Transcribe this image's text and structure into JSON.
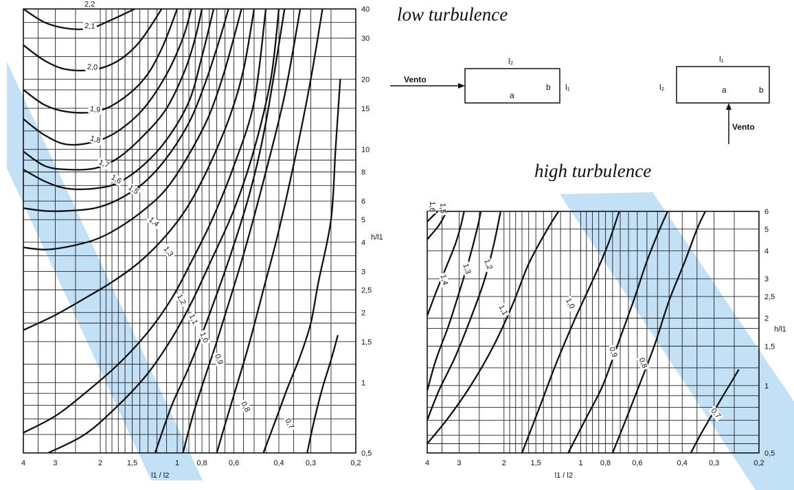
{
  "chart_data": [
    {
      "type": "line",
      "title": "low turbulence",
      "xlabel": "l1 / l2",
      "ylabel": "h/l1",
      "x_scale": "log-reversed",
      "y_scale": "log",
      "xlim": [
        4,
        0.2
      ],
      "ylim": [
        0.5,
        40
      ],
      "x_ticks": [
        "4",
        "3",
        "2",
        "1,5",
        "1",
        "0,8",
        "0,6",
        "0,4",
        "0,3",
        "0,2"
      ],
      "x_tick_values": [
        4,
        3,
        2,
        1.5,
        1,
        0.8,
        0.6,
        0.4,
        0.3,
        0.2
      ],
      "y_ticks": [
        "0,5",
        "1",
        "1,5",
        "2",
        "2,5",
        "3",
        "4",
        "5",
        "6",
        "8",
        "10",
        "15",
        "20",
        "30",
        "40"
      ],
      "y_tick_values": [
        0.5,
        1,
        1.5,
        2,
        2.5,
        3,
        4,
        5,
        6,
        8,
        10,
        15,
        20,
        30,
        40
      ],
      "grid": true,
      "series": [
        {
          "name": "2,2",
          "points": [
            [
              2.6,
              40
            ],
            [
              2.2,
              41
            ],
            [
              1.85,
              41
            ],
            [
              1.6,
              40
            ]
          ]
        },
        {
          "name": "2,1",
          "points": [
            [
              4,
              40
            ],
            [
              3.3,
              35
            ],
            [
              2.7,
              33
            ],
            [
              2.2,
              33
            ],
            [
              1.8,
              36
            ],
            [
              1.4,
              41
            ]
          ]
        },
        {
          "name": "2,0",
          "points": [
            [
              4,
              28
            ],
            [
              3.3,
              24
            ],
            [
              2.7,
              22
            ],
            [
              2.1,
              22
            ],
            [
              1.7,
              24
            ],
            [
              1.4,
              29
            ],
            [
              1.15,
              40
            ]
          ]
        },
        {
          "name": "1,9",
          "points": [
            [
              4,
              18
            ],
            [
              3.3,
              15.5
            ],
            [
              2.7,
              14.5
            ],
            [
              2.1,
              14.5
            ],
            [
              1.7,
              16
            ],
            [
              1.35,
              20
            ],
            [
              1.15,
              27
            ],
            [
              1,
              40
            ]
          ]
        },
        {
          "name": "1,8",
          "points": [
            [
              4,
              13.5
            ],
            [
              3.3,
              11.5
            ],
            [
              2.7,
              10.5
            ],
            [
              2.1,
              10.8
            ],
            [
              1.7,
              12
            ],
            [
              1.35,
              15
            ],
            [
              1.1,
              21
            ],
            [
              0.95,
              30
            ],
            [
              0.88,
              40
            ]
          ]
        },
        {
          "name": "1,7",
          "points": [
            [
              4,
              9.8
            ],
            [
              3.3,
              8.5
            ],
            [
              2.7,
              8.2
            ],
            [
              2.1,
              8.3
            ],
            [
              1.7,
              9.2
            ],
            [
              1.35,
              11.5
            ],
            [
              1.1,
              15
            ],
            [
              0.93,
              22
            ],
            [
              0.85,
              30
            ],
            [
              0.8,
              40
            ]
          ]
        },
        {
          "name": "1,6",
          "points": [
            [
              4,
              8.2
            ],
            [
              3.3,
              7.3
            ],
            [
              2.7,
              6.8
            ],
            [
              2.1,
              6.8
            ],
            [
              1.7,
              7.2
            ],
            [
              1.35,
              8.6
            ],
            [
              1.1,
              11
            ],
            [
              0.9,
              16
            ],
            [
              0.8,
              25
            ],
            [
              0.72,
              40
            ]
          ]
        },
        {
          "name": "1,5",
          "points": [
            [
              4,
              5.6
            ],
            [
              3.3,
              5.45
            ],
            [
              2.7,
              5.45
            ],
            [
              2.1,
              5.6
            ],
            [
              1.7,
              6.1
            ],
            [
              1.35,
              7.2
            ],
            [
              1.1,
              9.2
            ],
            [
              0.9,
              13
            ],
            [
              0.78,
              19
            ],
            [
              0.68,
              30
            ],
            [
              0.63,
              40
            ]
          ]
        },
        {
          "name": "1,4",
          "points": [
            [
              4,
              3.8
            ],
            [
              3.3,
              3.72
            ],
            [
              2.7,
              3.82
            ],
            [
              2.1,
              4.1
            ],
            [
              1.7,
              4.6
            ],
            [
              1.35,
              5.5
            ],
            [
              1.1,
              6.8
            ],
            [
              0.9,
              9.5
            ],
            [
              0.75,
              14
            ],
            [
              0.65,
              22
            ],
            [
              0.56,
              40
            ]
          ]
        },
        {
          "name": "1,3",
          "points": [
            [
              4,
              1.68
            ],
            [
              3,
              1.95
            ],
            [
              2.3,
              2.3
            ],
            [
              1.8,
              2.7
            ],
            [
              1.4,
              3.3
            ],
            [
              1.1,
              4.3
            ],
            [
              0.9,
              5.8
            ],
            [
              0.75,
              8.5
            ],
            [
              0.62,
              14
            ],
            [
              0.55,
              22
            ],
            [
              0.5,
              40
            ]
          ]
        },
        {
          "name": "1,2",
          "points": [
            [
              4,
              0.61
            ],
            [
              3,
              0.72
            ],
            [
              2.3,
              0.9
            ],
            [
              1.7,
              1.2
            ],
            [
              1.3,
              1.65
            ],
            [
              1.05,
              2.3
            ],
            [
              0.88,
              3.3
            ],
            [
              0.73,
              5
            ],
            [
              0.6,
              8.5
            ],
            [
              0.5,
              16
            ],
            [
              0.45,
              40
            ]
          ]
        },
        {
          "name": "1,1",
          "points": [
            [
              3.2,
              0.5
            ],
            [
              2.3,
              0.6
            ],
            [
              1.7,
              0.8
            ],
            [
              1.3,
              1.1
            ],
            [
              1.05,
              1.55
            ],
            [
              0.88,
              2.2
            ],
            [
              0.75,
              3.2
            ],
            [
              0.6,
              5.5
            ],
            [
              0.5,
              10
            ],
            [
              0.43,
              20
            ],
            [
              0.4,
              40
            ]
          ]
        },
        {
          "name": "1,0",
          "points": [
            [
              1.22,
              0.5
            ],
            [
              1.05,
              0.8
            ],
            [
              0.92,
              1.1
            ],
            [
              0.82,
              1.5
            ],
            [
              0.72,
              2.2
            ],
            [
              0.62,
              3.5
            ],
            [
              0.52,
              6.5
            ],
            [
              0.45,
              13
            ],
            [
              0.38,
              40
            ]
          ]
        },
        {
          "name": "0,9",
          "points": [
            [
              0.95,
              0.5
            ],
            [
              0.86,
              0.75
            ],
            [
              0.78,
              1.05
            ],
            [
              0.7,
              1.5
            ],
            [
              0.62,
              2.3
            ],
            [
              0.54,
              3.8
            ],
            [
              0.45,
              8
            ],
            [
              0.38,
              17
            ],
            [
              0.33,
              40
            ]
          ]
        },
        {
          "name": "0,8",
          "points": [
            [
              0.7,
              0.5
            ],
            [
              0.64,
              0.7
            ],
            [
              0.58,
              1.0
            ],
            [
              0.52,
              1.5
            ],
            [
              0.46,
              2.5
            ],
            [
              0.4,
              4.5
            ],
            [
              0.34,
              10
            ],
            [
              0.3,
              20
            ],
            [
              0.27,
              40
            ]
          ]
        },
        {
          "name": "0,7",
          "points": [
            [
              0.46,
              0.5
            ],
            [
              0.41,
              0.7
            ],
            [
              0.37,
              0.95
            ],
            [
              0.33,
              1.3
            ],
            [
              0.3,
              1.8
            ],
            [
              0.28,
              2.7
            ],
            [
              0.25,
              5
            ],
            [
              0.24,
              10
            ],
            [
              0.23,
              20
            ]
          ]
        },
        {
          "name": "",
          "points": [
            [
              0.31,
              0.5
            ],
            [
              0.29,
              0.7
            ],
            [
              0.27,
              0.95
            ],
            [
              0.25,
              1.25
            ],
            [
              0.235,
              1.6
            ]
          ]
        }
      ]
    },
    {
      "type": "line",
      "title": "high turbulence",
      "xlabel": "l1 / l2",
      "ylabel": "h/l1",
      "x_scale": "log-reversed",
      "y_scale": "log",
      "xlim": [
        4,
        0.2
      ],
      "ylim": [
        0.5,
        6
      ],
      "x_ticks": [
        "4",
        "3",
        "2",
        "1,5",
        "1",
        "0,8",
        "0,6",
        "0,4",
        "0,3",
        "0,2"
      ],
      "x_tick_values": [
        4,
        3,
        2,
        1.5,
        1,
        0.8,
        0.6,
        0.4,
        0.3,
        0.2
      ],
      "y_ticks": [
        "0,5",
        "1",
        "1,5",
        "2",
        "2,5",
        "3",
        "4",
        "5",
        "6"
      ],
      "y_tick_values": [
        0.5,
        1,
        1.5,
        2,
        2.5,
        3,
        4,
        5,
        6
      ],
      "grid": true,
      "series": [
        {
          "name": "1,6",
          "points": [
            [
              4,
              5.4
            ],
            [
              3.7,
              5.9
            ],
            [
              3.55,
              6.2
            ]
          ]
        },
        {
          "name": "1,5",
          "points": [
            [
              4,
              4.5
            ],
            [
              3.6,
              5.2
            ],
            [
              3.3,
              6.2
            ]
          ]
        },
        {
          "name": "1,4",
          "points": [
            [
              4,
              2.05
            ],
            [
              3.7,
              2.6
            ],
            [
              3.4,
              3.3
            ],
            [
              3.1,
              4.3
            ],
            [
              2.95,
              5.2
            ],
            [
              2.85,
              6.2
            ]
          ]
        },
        {
          "name": "1,3",
          "points": [
            [
              4,
              0.95
            ],
            [
              3.7,
              1.3
            ],
            [
              3.3,
              1.85
            ],
            [
              3.0,
              2.6
            ],
            [
              2.75,
              3.6
            ],
            [
              2.55,
              5
            ],
            [
              2.45,
              6.2
            ]
          ]
        },
        {
          "name": "1,2",
          "points": [
            [
              4,
              0.7
            ],
            [
              3.6,
              0.95
            ],
            [
              3.1,
              1.35
            ],
            [
              2.7,
              2.0
            ],
            [
              2.4,
              2.9
            ],
            [
              2.2,
              4.2
            ],
            [
              2.05,
              6.2
            ]
          ]
        },
        {
          "name": "1,1",
          "points": [
            [
              4,
              0.55
            ],
            [
              3.3,
              0.72
            ],
            [
              2.7,
              1.0
            ],
            [
              2.2,
              1.5
            ],
            [
              1.85,
              2.3
            ],
            [
              1.6,
              3.5
            ],
            [
              1.35,
              5
            ],
            [
              1.2,
              6.2
            ]
          ]
        },
        {
          "name": "1,0",
          "points": [
            [
              1.7,
              0.5
            ],
            [
              1.45,
              0.8
            ],
            [
              1.25,
              1.25
            ],
            [
              1.05,
              2.0
            ],
            [
              0.88,
              3.1
            ],
            [
              0.78,
              4.3
            ],
            [
              0.7,
              6.2
            ]
          ]
        },
        {
          "name": "0,9",
          "points": [
            [
              1.12,
              0.5
            ],
            [
              0.95,
              0.72
            ],
            [
              0.82,
              1.0
            ],
            [
              0.72,
              1.5
            ],
            [
              0.62,
              2.4
            ],
            [
              0.55,
              3.6
            ],
            [
              0.49,
              5
            ],
            [
              0.45,
              6.2
            ]
          ]
        },
        {
          "name": "0,8",
          "points": [
            [
              0.75,
              0.5
            ],
            [
              0.66,
              0.72
            ],
            [
              0.58,
              1.05
            ],
            [
              0.51,
              1.55
            ],
            [
              0.45,
              2.4
            ],
            [
              0.39,
              3.6
            ],
            [
              0.35,
              5
            ],
            [
              0.32,
              6.2
            ]
          ]
        },
        {
          "name": "0,7",
          "points": [
            [
              0.37,
              0.5
            ],
            [
              0.34,
              0.6
            ],
            [
              0.31,
              0.72
            ],
            [
              0.28,
              0.88
            ],
            [
              0.255,
              1.05
            ],
            [
              0.24,
              1.18
            ]
          ]
        }
      ]
    }
  ],
  "diagrams": {
    "left": {
      "top_label": "l₂",
      "right_label": "l₁",
      "label_a": "a",
      "label_b": "b",
      "wind": "Vento"
    },
    "right": {
      "top_label": "l₁",
      "left_label": "l₂",
      "label_a": "a",
      "label_b": "b",
      "wind": "Vento"
    }
  },
  "colors": {
    "ink": "#111111",
    "watermark": "#b7dbf5"
  }
}
